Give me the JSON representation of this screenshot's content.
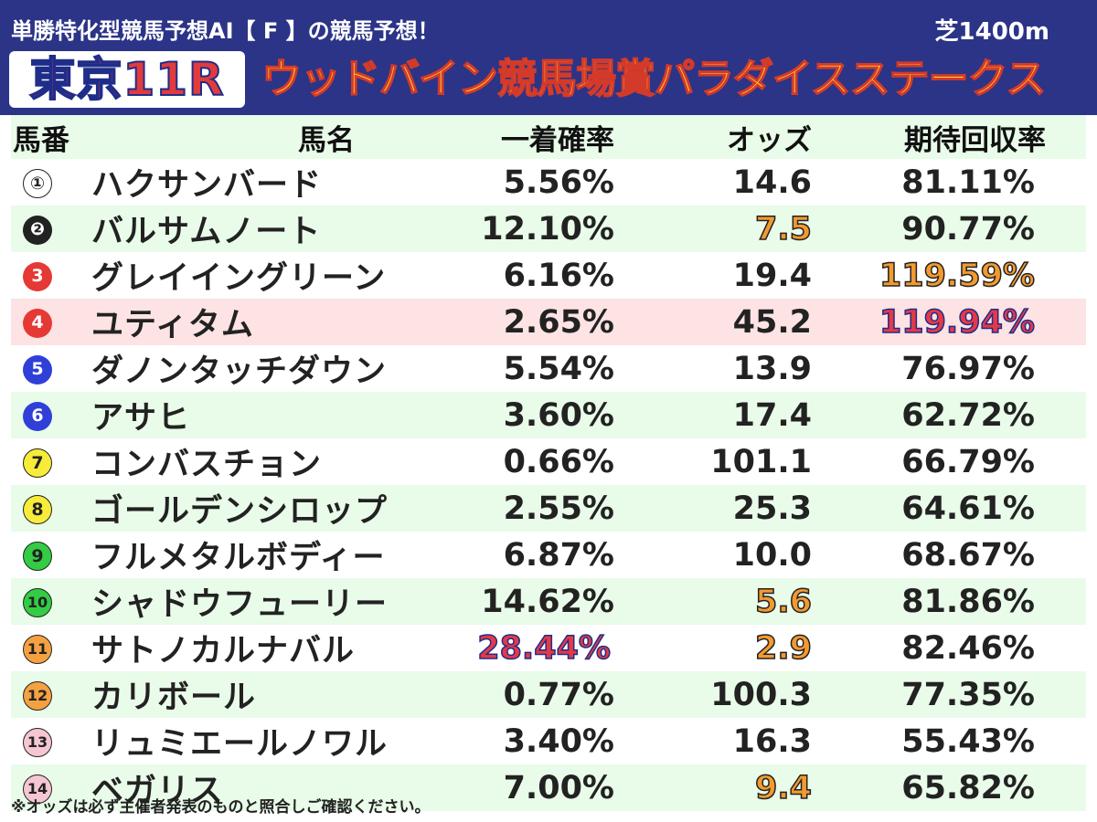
{
  "header": {
    "subtitle": "単勝特化型競馬予想AI【 F 】の競馬予想！",
    "course": "芝1400m",
    "race_no": "東京11R",
    "race_name": "ウッドバイン競馬場賞パラダイスステークス",
    "colors": {
      "background": "#2b3487",
      "race_no_text": "#e23b3b",
      "race_name_text": "#ffd93b"
    }
  },
  "table": {
    "columns": [
      "馬番",
      "馬名",
      "一着確率",
      "オッズ",
      "期待回収率"
    ],
    "rows": [
      {
        "no": "①",
        "name": "ハクサンバード",
        "prob": "5.56%",
        "odds": "14.6",
        "roi": "81.11%"
      },
      {
        "no": "❷",
        "name": "バルサムノート",
        "prob": "12.10%",
        "odds": "7.5",
        "roi": "90.77%"
      },
      {
        "no": "3",
        "name": "グレイイングリーン",
        "prob": "6.16%",
        "odds": "19.4",
        "roi": "119.59%"
      },
      {
        "no": "4",
        "name": "ユティタム",
        "prob": "2.65%",
        "odds": "45.2",
        "roi": "119.94%"
      },
      {
        "no": "5",
        "name": "ダノンタッチダウン",
        "prob": "5.54%",
        "odds": "13.9",
        "roi": "76.97%"
      },
      {
        "no": "6",
        "name": "アサヒ",
        "prob": "3.60%",
        "odds": "17.4",
        "roi": "62.72%"
      },
      {
        "no": "7",
        "name": "コンバスチョン",
        "prob": "0.66%",
        "odds": "101.1",
        "roi": "66.79%"
      },
      {
        "no": "8",
        "name": "ゴールデンシロップ",
        "prob": "2.55%",
        "odds": "25.3",
        "roi": "64.61%"
      },
      {
        "no": "9",
        "name": "フルメタルボディー",
        "prob": "6.87%",
        "odds": "10.0",
        "roi": "68.67%"
      },
      {
        "no": "10",
        "name": "シャドウフューリー",
        "prob": "14.62%",
        "odds": "5.6",
        "roi": "81.86%"
      },
      {
        "no": "11",
        "name": "サトノカルナバル",
        "prob": "28.44%",
        "odds": "2.9",
        "roi": "82.46%"
      },
      {
        "no": "12",
        "name": "カリボール",
        "prob": "0.77%",
        "odds": "100.3",
        "roi": "77.35%"
      },
      {
        "no": "13",
        "name": "リュミエールノワル",
        "prob": "3.40%",
        "odds": "16.3",
        "roi": "55.43%"
      },
      {
        "no": "14",
        "name": "ベガリス",
        "prob": "7.00%",
        "odds": "9.4",
        "roi": "65.82%"
      }
    ],
    "highlight_colors": {
      "odds_top": "#f39a2f",
      "alert": "#e53945",
      "alert_row_bg": "#fde3e3",
      "stripe_bg": "#e9fbe9"
    }
  },
  "footnote": "※オッズは必ず主催者発表のものと照合しご確認ください。"
}
